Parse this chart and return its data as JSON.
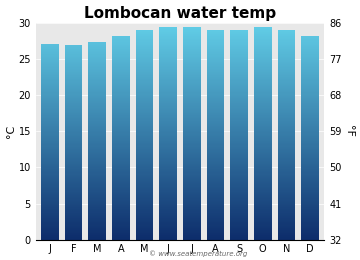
{
  "title": "Lombocan water temp",
  "months": [
    "J",
    "F",
    "M",
    "A",
    "M",
    "J",
    "J",
    "A",
    "S",
    "O",
    "N",
    "D"
  ],
  "values_c": [
    27.2,
    27.1,
    27.5,
    28.2,
    29.2,
    29.4,
    29.4,
    29.2,
    29.1,
    29.4,
    29.2,
    28.3
  ],
  "ylim_c": [
    0,
    30
  ],
  "yticks_c": [
    0,
    5,
    10,
    15,
    20,
    25,
    30
  ],
  "yticks_f": [
    32,
    41,
    50,
    59,
    68,
    77,
    86
  ],
  "ylabel_left": "°C",
  "ylabel_right": "°F",
  "bar_color_top": "#62cfe8",
  "bar_color_bottom": "#0d2d6b",
  "bg_color": "#ffffff",
  "plot_bg_color": "#e8e8e8",
  "title_fontsize": 11,
  "tick_fontsize": 7,
  "label_fontsize": 8,
  "watermark": "© www.seatemperature.org",
  "bar_width": 0.75
}
